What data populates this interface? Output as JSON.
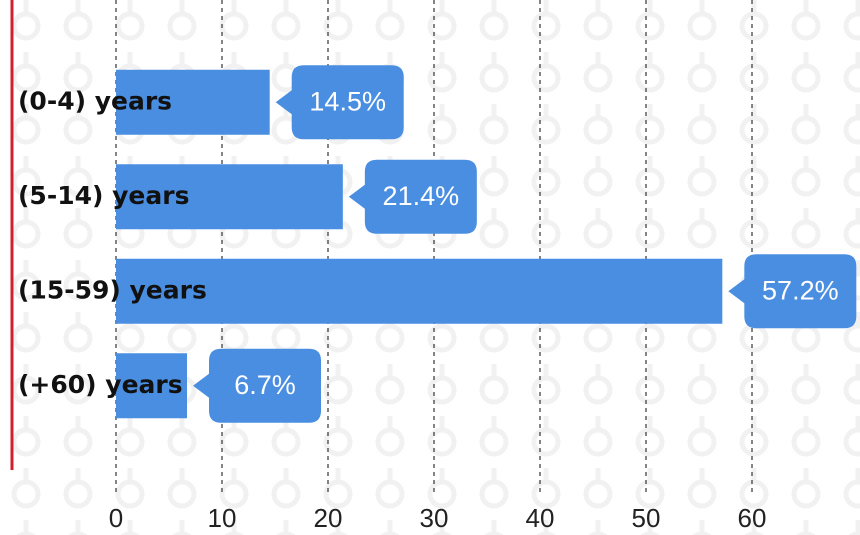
{
  "chart_data": {
    "type": "barh",
    "categories": [
      "(0-4) years",
      "(5-14) years",
      "(15-59) years",
      "(+60) years"
    ],
    "values": [
      14.5,
      21.4,
      57.2,
      6.7
    ],
    "value_labels": [
      "14.5%",
      "21.4%",
      "57.2%",
      "6.7%"
    ],
    "color": "#4a8ee2",
    "xlim": [
      0,
      70
    ],
    "xticks": [
      0,
      10,
      20,
      30,
      40,
      50,
      60
    ],
    "grid": true
  }
}
